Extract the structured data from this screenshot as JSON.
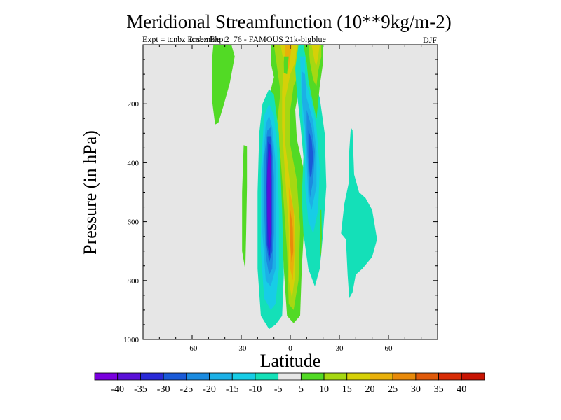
{
  "chart_data": {
    "type": "heatmap",
    "subtype": "filled-contour",
    "title": "Meridional Streamfunction (10**9kg/m-2)",
    "subtitle_left": "Expt = tcnbz Ensemble_2_76 - FAMOUS 21k-bigblue",
    "subtitle_overlap": "tcnbz Expt",
    "season": "DJF",
    "xlabel": "Latitude",
    "ylabel": "Pressure (in hPa)",
    "xlim": [
      -90,
      90
    ],
    "ylim": [
      1000,
      0
    ],
    "xticks": [
      -60,
      -30,
      0,
      30,
      60
    ],
    "xtick_labels": [
      "-60",
      "-30",
      "0",
      "30",
      "60"
    ],
    "yticks": [
      200,
      400,
      600,
      800,
      1000
    ],
    "ytick_labels": [
      "200",
      "400",
      "600",
      "800",
      "1000"
    ],
    "missing_color": "#e6e6e6",
    "colorbar": {
      "labels": [
        "-40",
        "-35",
        "-30",
        "-25",
        "-20",
        "-15",
        "-10",
        "-5",
        "5",
        "10",
        "15",
        "20",
        "25",
        "30",
        "35",
        "40"
      ],
      "colors": [
        "#7a00de",
        "#5a10d8",
        "#2a2ad8",
        "#1a5ad8",
        "#1b8be0",
        "#1cb0e6",
        "#17cde6",
        "#14e0b8",
        "#e6e6e6",
        "#52da25",
        "#a6d812",
        "#d6d008",
        "#e8b00a",
        "#e88a0a",
        "#e05a0a",
        "#d82c05",
        "#c81403"
      ]
    },
    "features": [
      {
        "name": "south-hadley-cell",
        "value": -40,
        "lat": -14,
        "p_top": 150,
        "p_bottom": 960,
        "core_p": [
          300,
          820
        ]
      },
      {
        "name": "equatorial-cell",
        "value": 25,
        "lat": 0,
        "p_top": 0,
        "p_bottom": 960,
        "core_p": [
          500,
          760
        ]
      },
      {
        "name": "north-hadley-cell",
        "value": -30,
        "lat": 10,
        "p_top": 0,
        "p_bottom": 820,
        "core_p": [
          330,
          560
        ]
      },
      {
        "name": "north-upper-positive",
        "value": 10,
        "lat": 15,
        "p_top": 0,
        "p_bottom": 250
      },
      {
        "name": "north-ferrel-negative",
        "value": -5,
        "lat": 40,
        "p_top": 540,
        "p_bottom": 860
      },
      {
        "name": "south-upper-positive",
        "value": 5,
        "lat": -45,
        "p_top": 0,
        "p_bottom": 280
      },
      {
        "name": "south-ferrel-positive",
        "value": 5,
        "lat": -28,
        "p_top": 330,
        "p_bottom": 770
      }
    ]
  }
}
